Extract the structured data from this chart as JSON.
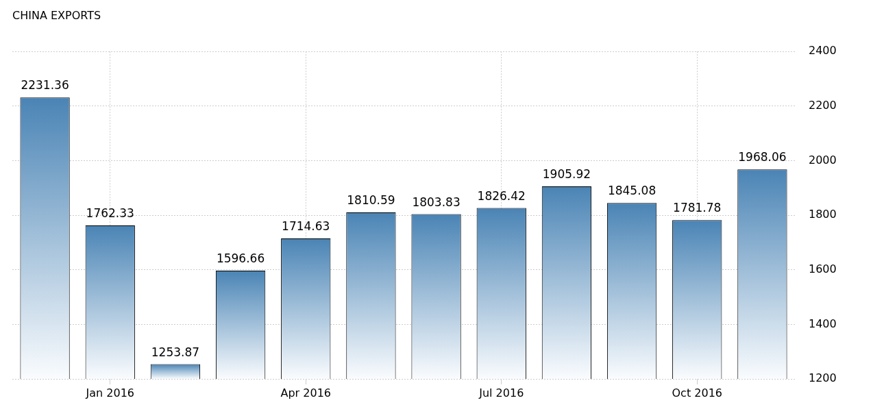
{
  "chart_data": {
    "type": "bar",
    "title": "CHINA EXPORTS",
    "categories": [
      null,
      "Jan 2016",
      null,
      null,
      "Apr 2016",
      null,
      null,
      "Jul 2016",
      null,
      null,
      "Oct 2016",
      null
    ],
    "values": [
      2231.36,
      1762.33,
      1253.87,
      1596.66,
      1714.63,
      1810.59,
      1803.83,
      1826.42,
      1905.92,
      1845.08,
      1781.78,
      1968.06
    ],
    "color": "#4a84b5",
    "ylim": [
      1200,
      2400
    ],
    "yticks": [
      1200,
      1400,
      1600,
      1800,
      2000,
      2200,
      2400
    ],
    "grid": true,
    "legend": false,
    "data_labels": true
  }
}
